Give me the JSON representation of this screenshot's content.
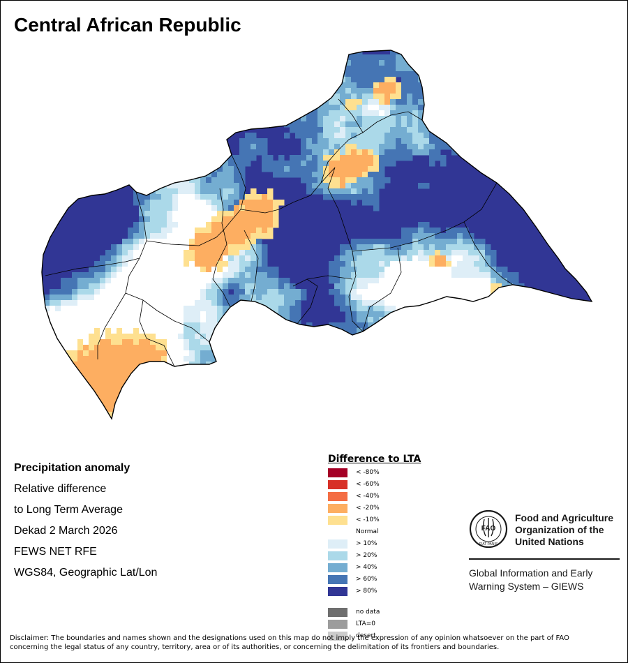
{
  "title": "Central African Republic",
  "info": {
    "heading": "Precipitation anomaly",
    "line1": "Relative difference",
    "line2": "to Long Term Average",
    "line3": "Dekad 2 March 2026",
    "line4": "FEWS NET RFE",
    "line5": "WGS84, Geographic Lat/Lon"
  },
  "legend": {
    "title": "Difference to LTA",
    "items": [
      {
        "label": "< -80%",
        "color": "#a50026"
      },
      {
        "label": "< -60%",
        "color": "#d73027"
      },
      {
        "label": "< -40%",
        "color": "#f46d43"
      },
      {
        "label": "< -20%",
        "color": "#fdae61"
      },
      {
        "label": "< -10%",
        "color": "#fee090"
      },
      {
        "label": "Normal",
        "color": "#ffffff"
      },
      {
        "label": "> 10%",
        "color": "#deeef7"
      },
      {
        "label": "> 20%",
        "color": "#abd9e9"
      },
      {
        "label": "> 40%",
        "color": "#74add1"
      },
      {
        "label": "> 60%",
        "color": "#4575b4"
      },
      {
        "label": "> 80%",
        "color": "#313695"
      }
    ],
    "extra": [
      {
        "label": "no data",
        "color": "#6e6e6e"
      },
      {
        "label": "LTA=0",
        "color": "#9c9c9c"
      },
      {
        "label": "desert",
        "color": "#cccccc"
      }
    ]
  },
  "fao": {
    "logo_text": "FAO",
    "logo_motto": "FIAT PANIS",
    "name_line1": "Food and Agriculture",
    "name_line2": "Organization of the",
    "name_line3": "United Nations",
    "giews_line1": "Global Information and Early",
    "giews_line2": "Warning System – GIEWS"
  },
  "disclaimer": {
    "line1": "Disclaimer: The boundaries and names shown and the designations used on this map do not imply the expression of any opinion whatsoever on the part of FAO",
    "line2": "concerning the legal status of any country, territory, area or of its authorities, or concerning the delimitation of its frontiers and boundaries."
  }
}
